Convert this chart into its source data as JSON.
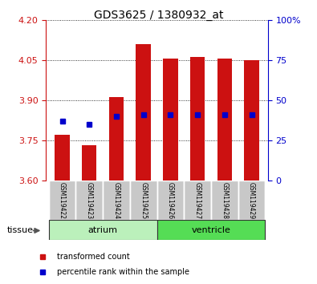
{
  "title": "GDS3625 / 1380932_at",
  "samples": [
    "GSM119422",
    "GSM119423",
    "GSM119424",
    "GSM119425",
    "GSM119426",
    "GSM119427",
    "GSM119428",
    "GSM119429"
  ],
  "red_bar_top": [
    3.77,
    3.73,
    3.91,
    4.11,
    4.055,
    4.06,
    4.055,
    4.05
  ],
  "blue_dot_y_left": [
    3.82,
    3.81,
    3.84,
    3.845,
    3.845,
    3.845,
    3.845,
    3.845
  ],
  "bar_bottom": 3.6,
  "ylim_left": [
    3.6,
    4.2
  ],
  "ylim_right": [
    0,
    100
  ],
  "left_ticks": [
    3.6,
    3.75,
    3.9,
    4.05,
    4.2
  ],
  "right_ticks": [
    0,
    25,
    50,
    75,
    100
  ],
  "right_tick_labels": [
    "0",
    "25",
    "50",
    "75",
    "100%"
  ],
  "groups": [
    {
      "label": "atrium",
      "indices": [
        0,
        1,
        2,
        3
      ],
      "color": "#bbf0bb"
    },
    {
      "label": "ventricle",
      "indices": [
        4,
        5,
        6,
        7
      ],
      "color": "#55dd55"
    }
  ],
  "bar_color": "#cc1111",
  "dot_color": "#0000cc",
  "bar_width": 0.55,
  "left_tick_color": "#cc1111",
  "right_tick_color": "#0000cc",
  "sample_bg_color": "#c8c8c8",
  "tissue_label": "tissue",
  "legend_items": [
    {
      "color": "#cc1111",
      "label": "transformed count"
    },
    {
      "color": "#0000cc",
      "label": "percentile rank within the sample"
    }
  ]
}
